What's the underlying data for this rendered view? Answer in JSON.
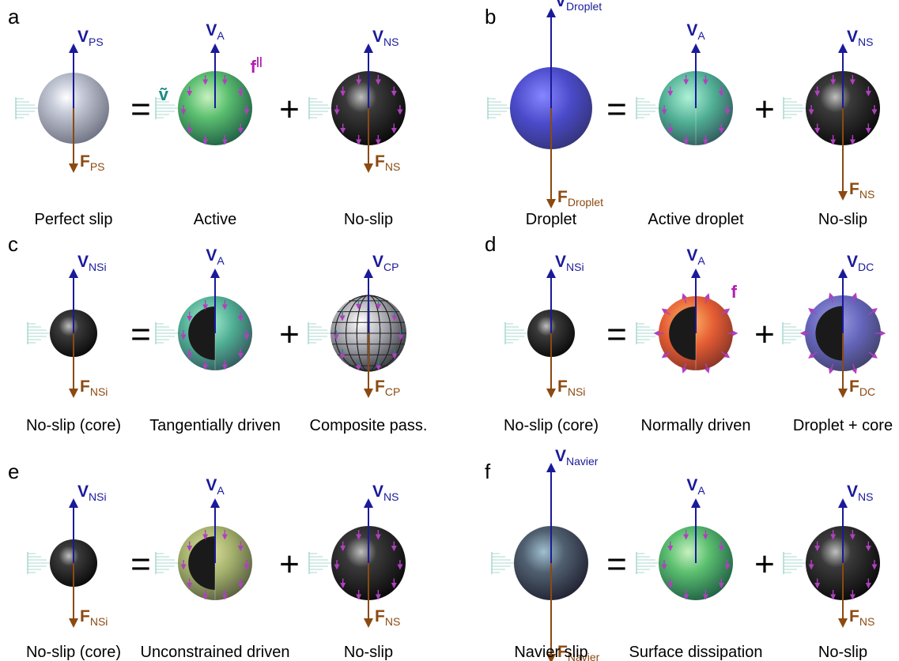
{
  "panels": [
    {
      "letter": "a",
      "equals": "=",
      "plus": "+",
      "items": [
        {
          "V": "V",
          "v_sub": "PS",
          "F": "F",
          "f_sub": "PS",
          "caption": "Perfect slip"
        },
        {
          "V": "V",
          "v_sub": "A",
          "caption": "Active",
          "force": "f",
          "force_sup": "||",
          "velocity": "ṽ"
        },
        {
          "V": "V",
          "v_sub": "NS",
          "F": "F",
          "f_sub": "NS",
          "caption": "No-slip"
        }
      ]
    },
    {
      "letter": "b",
      "equals": "=",
      "plus": "+",
      "items": [
        {
          "V": "V",
          "v_sub": "Droplet",
          "F": "F",
          "f_sub": "Droplet",
          "caption": "Droplet"
        },
        {
          "V": "V",
          "v_sub": "A",
          "caption": "Active droplet"
        },
        {
          "V": "V",
          "v_sub": "NS",
          "F": "F",
          "f_sub": "NS",
          "caption": "No-slip"
        }
      ]
    },
    {
      "letter": "c",
      "equals": "=",
      "plus": "+",
      "items": [
        {
          "V": "V",
          "v_sub": "NSi",
          "F": "F",
          "f_sub": "NSi",
          "caption": "No-slip (core)"
        },
        {
          "V": "V",
          "v_sub": "A",
          "caption": "Tangentially driven"
        },
        {
          "V": "V",
          "v_sub": "CP",
          "F": "F",
          "f_sub": "CP",
          "caption": "Composite pass."
        }
      ]
    },
    {
      "letter": "d",
      "equals": "=",
      "plus": "+",
      "items": [
        {
          "V": "V",
          "v_sub": "NSi",
          "F": "F",
          "f_sub": "NSi",
          "caption": "No-slip (core)"
        },
        {
          "V": "V",
          "v_sub": "A",
          "caption": "Normally driven",
          "force": "f"
        },
        {
          "V": "V",
          "v_sub": "DC",
          "F": "F",
          "f_sub": "DC",
          "caption": "Droplet + core"
        }
      ]
    },
    {
      "letter": "e",
      "equals": "=",
      "plus": "+",
      "items": [
        {
          "V": "V",
          "v_sub": "NSi",
          "F": "F",
          "f_sub": "NSi",
          "caption": "No-slip (core)"
        },
        {
          "V": "V",
          "v_sub": "A",
          "caption": "Unconstrained driven"
        },
        {
          "V": "V",
          "v_sub": "NS",
          "F": "F",
          "f_sub": "NS",
          "caption": "No-slip"
        }
      ]
    },
    {
      "letter": "f",
      "equals": "=",
      "plus": "+",
      "items": [
        {
          "V": "V",
          "v_sub": "Navier",
          "F": "F",
          "f_sub": "Navier",
          "caption": "Navier slip"
        },
        {
          "V": "V",
          "v_sub": "A",
          "caption": "Surface dissipation"
        },
        {
          "V": "V",
          "v_sub": "NS",
          "F": "F",
          "f_sub": "NS",
          "caption": "No-slip"
        }
      ]
    }
  ]
}
